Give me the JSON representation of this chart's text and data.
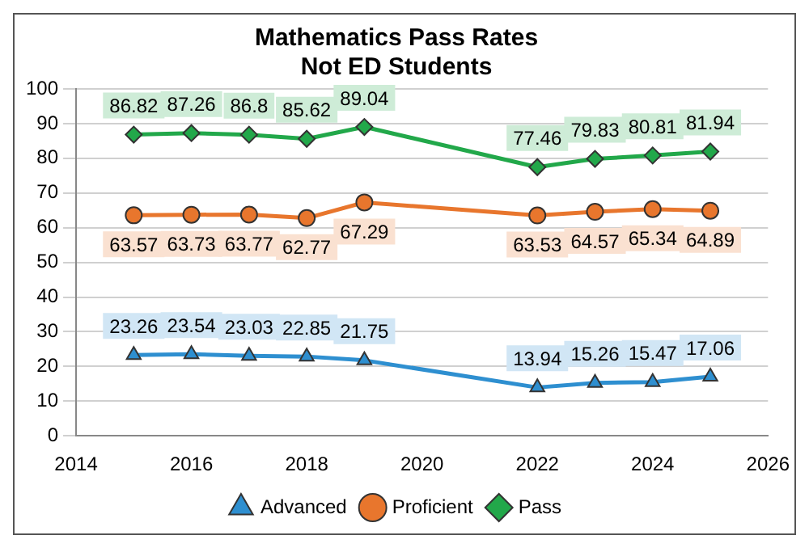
{
  "chart_data": {
    "type": "line",
    "title": "Mathematics Pass Rates\nNot ED Students",
    "x": [
      2015,
      2016,
      2017,
      2018,
      2019,
      2022,
      2023,
      2024,
      2025
    ],
    "xlim": [
      2014,
      2026
    ],
    "xticks": [
      2014,
      2016,
      2018,
      2020,
      2022,
      2024,
      2026
    ],
    "ylim": [
      0,
      100
    ],
    "yticks": [
      0,
      10,
      20,
      30,
      40,
      50,
      60,
      70,
      80,
      90,
      100
    ],
    "grid": "y",
    "legend": "bottom",
    "data_labels": true,
    "line_style": "solid",
    "series": [
      {
        "name": "Advanced",
        "color": "#2e8fd0",
        "marker": "triangle",
        "values": [
          23.26,
          23.54,
          23.03,
          22.85,
          21.75,
          13.94,
          15.26,
          15.47,
          17.06
        ]
      },
      {
        "name": "Proficient",
        "color": "#e8762d",
        "marker": "circle",
        "values": [
          63.57,
          63.73,
          63.77,
          62.77,
          67.29,
          63.53,
          64.57,
          65.34,
          64.89
        ]
      },
      {
        "name": "Pass",
        "color": "#22a84a",
        "marker": "diamond",
        "values": [
          86.82,
          87.26,
          86.8,
          85.62,
          89.04,
          77.46,
          79.83,
          80.81,
          81.94
        ]
      }
    ]
  }
}
